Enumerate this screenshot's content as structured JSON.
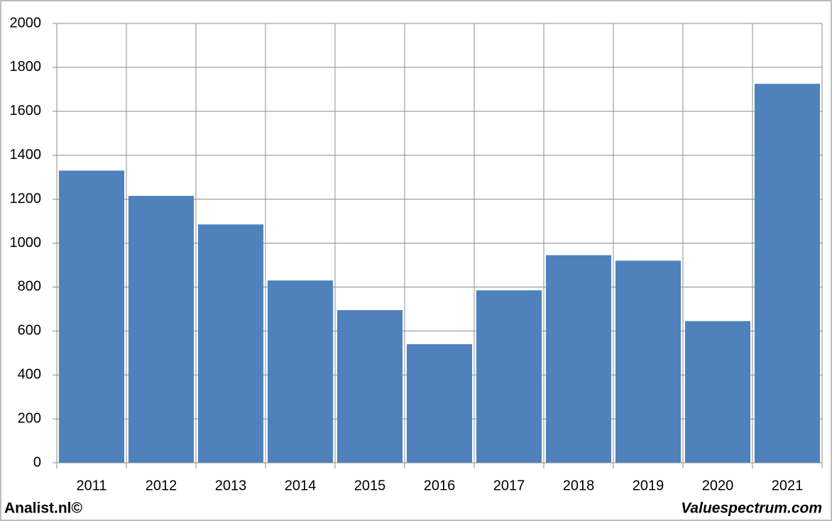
{
  "chart_data": {
    "type": "bar",
    "categories": [
      "2011",
      "2012",
      "2013",
      "2014",
      "2015",
      "2016",
      "2017",
      "2018",
      "2019",
      "2020",
      "2021"
    ],
    "values": [
      1330,
      1215,
      1085,
      830,
      695,
      540,
      785,
      945,
      920,
      645,
      1725
    ],
    "color": "#4f81bd",
    "ylim": [
      0,
      2000
    ],
    "yticks": [
      0,
      200,
      400,
      600,
      800,
      1000,
      1200,
      1400,
      1600,
      1800,
      2000
    ],
    "grid": true,
    "annotations": [
      "Analist.nl©",
      "Valuespectrum.com"
    ]
  }
}
